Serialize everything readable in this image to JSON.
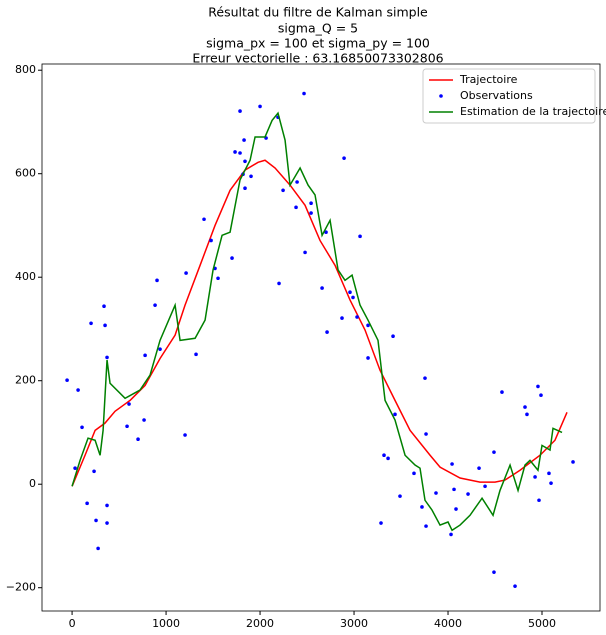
{
  "chart_data": {
    "type": "line",
    "title": [
      "Résultat du filtre de Kalman simple",
      "sigma_Q = 5",
      "sigma_px = 100 et sigma_py = 100",
      "Erreur vectorielle : 63.16850073302806"
    ],
    "xlim": [
      -320,
      5617
    ],
    "ylim": [
      -245,
      812
    ],
    "xticks": [
      0,
      1000,
      2000,
      3000,
      4000,
      5000
    ],
    "yticks": [
      {
        "value": -200,
        "label": "−200"
      },
      0,
      200,
      400,
      600,
      800
    ],
    "legend": "upper right",
    "series": [
      {
        "name": "Trajectoire",
        "color": "#ff0000",
        "style": "line",
        "x": [
          0,
          138,
          245,
          350,
          457,
          617,
          777,
          936,
          1096,
          1202,
          1362,
          1521,
          1681,
          1840,
          1979,
          2053,
          2160,
          2319,
          2479,
          2638,
          2798,
          2957,
          3117,
          3277,
          3436,
          3596,
          3809,
          3915,
          4128,
          4340,
          4500,
          4606,
          4766,
          4979,
          5138,
          5266
        ],
        "values": [
          -4,
          56,
          104,
          118,
          141,
          162,
          191,
          243,
          288,
          346,
          423,
          500,
          568,
          607,
          622,
          626,
          611,
          578,
          539,
          471,
          423,
          356,
          298,
          220,
          162,
          104,
          56,
          33,
          12,
          4,
          4,
          8,
          27,
          56,
          85,
          139
        ]
      },
      {
        "name": "Observations",
        "color": "#0000ff",
        "style": "points",
        "x": [
          -53,
          64,
          32,
          106,
          160,
          202,
          234,
          255,
          277,
          340,
          351,
          372,
          372,
          372,
          585,
          606,
          702,
          766,
          777,
          883,
          904,
          936,
          1213,
          1202,
          1319,
          1404,
          1479,
          1521,
          1553,
          1702,
          1734,
          1787,
          1787,
          1819,
          1830,
          1840,
          1840,
          1904,
          2000,
          2064,
          2191,
          2202,
          2245,
          2383,
          2394,
          2468,
          2479,
          2543,
          2543,
          2660,
          2702,
          2713,
          2872,
          2894,
          2957,
          2989,
          3032,
          3064,
          3149,
          3149,
          3287,
          3319,
          3362,
          3415,
          3436,
          3489,
          3638,
          3723,
          3755,
          3766,
          3766,
          3872,
          4032,
          4043,
          4064,
          4085,
          4213,
          4330,
          4394,
          4489,
          4489,
          4574,
          4713,
          4819,
          4840,
          4926,
          4957,
          4968,
          4989,
          5074,
          5096,
          5330
        ],
        "values": [
          201,
          182,
          31,
          110,
          -37,
          311,
          25,
          -70,
          -124,
          344,
          307,
          -41,
          -75,
          245,
          112,
          155,
          87,
          124,
          249,
          346,
          394,
          261,
          408,
          95,
          251,
          512,
          471,
          417,
          398,
          437,
          642,
          721,
          640,
          599,
          665,
          624,
          572,
          595,
          730,
          669,
          709,
          388,
          568,
          535,
          584,
          755,
          448,
          543,
          524,
          379,
          487,
          294,
          321,
          630,
          371,
          361,
          323,
          479,
          244,
          307,
          -75,
          56,
          50,
          286,
          135,
          -23,
          21,
          -44,
          205,
          97,
          -81,
          -17,
          -97,
          39,
          -10,
          -48,
          -19,
          31,
          -4,
          62,
          -170,
          178,
          -197,
          149,
          135,
          14,
          189,
          -31,
          172,
          21,
          2,
          43
        ]
      },
      {
        "name": "Estimation de la trajectoire",
        "color": "#008000",
        "style": "line",
        "x": [
          0,
          85,
          170,
          245,
          298,
          330,
          372,
          404,
          564,
          723,
          830,
          936,
          1096,
          1149,
          1309,
          1415,
          1500,
          1596,
          1681,
          1787,
          1894,
          1947,
          2053,
          2128,
          2191,
          2266,
          2319,
          2426,
          2511,
          2585,
          2660,
          2745,
          2830,
          2904,
          2979,
          3064,
          3149,
          3255,
          3330,
          3436,
          3543,
          3649,
          3702,
          3755,
          3830,
          3915,
          4000,
          4043,
          4128,
          4234,
          4362,
          4479,
          4553,
          4660,
          4745,
          4819,
          4872,
          4957,
          5000,
          5085,
          5117,
          5213
        ],
        "values": [
          -4,
          46,
          89,
          85,
          56,
          104,
          240,
          195,
          166,
          182,
          211,
          278,
          346,
          278,
          282,
          317,
          414,
          481,
          487,
          588,
          626,
          671,
          671,
          703,
          717,
          665,
          578,
          611,
          578,
          559,
          481,
          510,
          414,
          394,
          404,
          346,
          317,
          278,
          162,
          124,
          56,
          37,
          31,
          -31,
          -50,
          -79,
          -73,
          -89,
          -79,
          -60,
          -27,
          -60,
          -12,
          37,
          -12,
          37,
          46,
          27,
          75,
          66,
          108,
          100
        ]
      }
    ]
  }
}
